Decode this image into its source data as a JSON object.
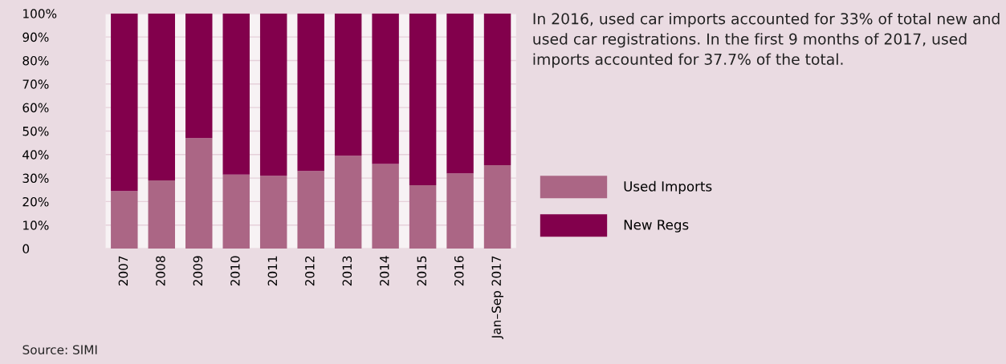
{
  "chart_data": {
    "type": "bar",
    "stacked": true,
    "categories": [
      "2007",
      "2008",
      "2009",
      "2010",
      "2011",
      "2012",
      "2013",
      "2014",
      "2015",
      "2016",
      "Jan–Sep 2017"
    ],
    "series": [
      {
        "name": "Used Imports",
        "color": "#ab6685",
        "values": [
          24.5,
          29,
          47,
          31.5,
          31,
          33,
          39.5,
          36,
          27,
          32,
          35.5
        ]
      },
      {
        "name": "New Regs",
        "color": "#82004c",
        "values": [
          75.5,
          71,
          53,
          68.5,
          69,
          67,
          60.5,
          64,
          73,
          68,
          64.5
        ]
      }
    ],
    "ylim": [
      0,
      100
    ],
    "yticks": [
      {
        "value": 0,
        "label": "0"
      },
      {
        "value": 10,
        "label": "10%"
      },
      {
        "value": 20,
        "label": "20%"
      },
      {
        "value": 30,
        "label": "30%"
      },
      {
        "value": 40,
        "label": "40%"
      },
      {
        "value": 50,
        "label": "50%"
      },
      {
        "value": 60,
        "label": "60%"
      },
      {
        "value": 70,
        "label": "70%"
      },
      {
        "value": 80,
        "label": "80%"
      },
      {
        "value": 90,
        "label": "90%"
      },
      {
        "value": 100,
        "label": "100%"
      }
    ],
    "grid": "y",
    "legend": "right",
    "annotations": [
      "In 2016, used car imports accounted for 33% of total new and used car registrations. In the first 9 months of 2017, used imports accounted for 37.7% of the total.",
      "Source: SIMI"
    ]
  }
}
